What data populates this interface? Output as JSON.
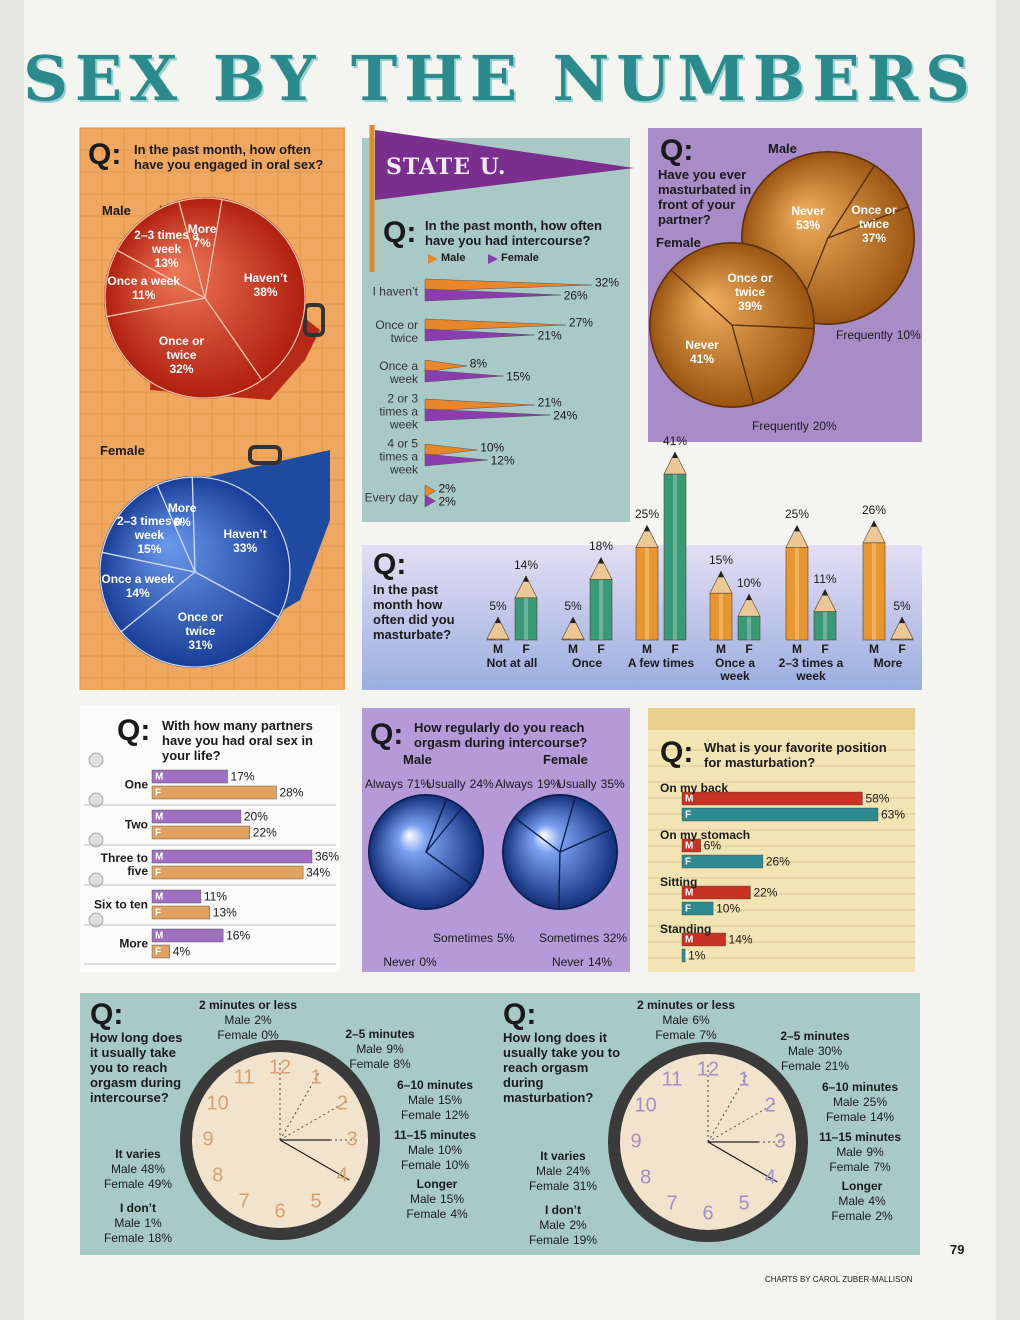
{
  "title": "SEX BY THE NUMBERS",
  "page_number": "79",
  "credit": "CHARTS BY CAROL ZUBER-MALLISON",
  "chart_data": [
    {
      "type": "pie",
      "q": "Q:",
      "title": "In the past month, how often have you engaged in oral sex?",
      "subtitle": "Male",
      "categories": [
        "Haven’t",
        "Once or twice",
        "Once a week",
        "2–3 times a week",
        "More"
      ],
      "values": [
        38,
        32,
        11,
        13,
        7
      ],
      "value_labels": [
        "38%",
        "32%",
        "11%",
        "13%",
        "7%"
      ],
      "color": "#c8321e"
    },
    {
      "type": "pie",
      "subtitle": "Female",
      "categories": [
        "Haven’t",
        "Once or twice",
        "Once a week",
        "2–3 times a week",
        "More"
      ],
      "values": [
        33,
        31,
        14,
        15,
        6
      ],
      "value_labels": [
        "33%",
        "31%",
        "14%",
        "15%",
        "6%"
      ],
      "color": "#2a5cb8"
    },
    {
      "type": "hbar",
      "banner": "STATE U.",
      "q": "Q:",
      "title": "In the past month, how often have you had intercourse?",
      "categories": [
        "I haven’t",
        "Once or twice",
        "Once a week",
        "2 or 3 times a week",
        "4 or 5 times a week",
        "Every day"
      ],
      "series": [
        {
          "name": "Male",
          "color": "#e8862a",
          "values": [
            32,
            27,
            8,
            21,
            10,
            2
          ],
          "value_labels": [
            "32%",
            "27%",
            "8%",
            "21%",
            "10%",
            "2%"
          ]
        },
        {
          "name": "Female",
          "color": "#8a3cb0",
          "values": [
            26,
            21,
            15,
            24,
            12,
            2
          ],
          "value_labels": [
            "26%",
            "21%",
            "15%",
            "24%",
            "12%",
            "2%"
          ]
        }
      ]
    },
    {
      "type": "pie",
      "q": "Q:",
      "title": "Have you ever masturbated in front of your partner?",
      "subtitle": "Male",
      "categories": [
        "Never",
        "Once or twice",
        "Frequently"
      ],
      "values": [
        53,
        37,
        10
      ],
      "value_labels": [
        "53%",
        "37%",
        "10%"
      ],
      "color": "#c8781e"
    },
    {
      "type": "pie",
      "subtitle": "Female",
      "categories": [
        "Never",
        "Once or twice",
        "Frequently"
      ],
      "values": [
        41,
        39,
        20
      ],
      "value_labels": [
        "41%",
        "39%",
        "20%"
      ],
      "color": "#c8781e"
    },
    {
      "type": "bar",
      "q": "Q:",
      "title": "In the past month how often did you masturbate?",
      "categories": [
        "Not at all",
        "Once",
        "A few times",
        "Once a week",
        "2–3 times a week",
        "More"
      ],
      "series": [
        {
          "name": "M",
          "color": "#e8962e",
          "values": [
            5,
            5,
            25,
            15,
            25,
            26
          ],
          "value_labels": [
            "5%",
            "5%",
            "25%",
            "15%",
            "25%",
            "26%"
          ]
        },
        {
          "name": "F",
          "color": "#3a9a78",
          "values": [
            14,
            18,
            41,
            10,
            11,
            5
          ],
          "value_labels": [
            "14%",
            "18%",
            "41%",
            "10%",
            "11%",
            "5%"
          ]
        }
      ]
    },
    {
      "type": "hbar",
      "q": "Q:",
      "title": "With how many partners have you had oral sex in your life?",
      "categories": [
        "One",
        "Two",
        "Three to five",
        "Six to ten",
        "More"
      ],
      "series": [
        {
          "name": "M",
          "color": "#a070c0",
          "values": [
            17,
            20,
            36,
            11,
            16
          ],
          "value_labels": [
            "17%",
            "20%",
            "36%",
            "11%",
            "16%"
          ]
        },
        {
          "name": "F",
          "color": "#e0a060",
          "values": [
            28,
            22,
            34,
            13,
            4
          ],
          "value_labels": [
            "28%",
            "22%",
            "34%",
            "13%",
            "4%"
          ]
        }
      ]
    },
    {
      "type": "pie",
      "q": "Q:",
      "title": "How regularly do you reach orgasm during intercourse?",
      "subtitle": "Male",
      "categories": [
        "Always",
        "Usually",
        "Sometimes",
        "Never"
      ],
      "values": [
        71,
        24,
        5,
        0
      ],
      "value_labels": [
        "71%",
        "24%",
        "5%",
        "0%"
      ],
      "color": "#2a5ab8"
    },
    {
      "type": "pie",
      "subtitle": "Female",
      "categories": [
        "Always",
        "Usually",
        "Sometimes",
        "Never"
      ],
      "values": [
        19,
        35,
        32,
        14
      ],
      "value_labels": [
        "19%",
        "35%",
        "32%",
        "14%"
      ],
      "color": "#2a5ab8"
    },
    {
      "type": "hbar",
      "q": "Q:",
      "title": "What is your favorite position for masturbation?",
      "categories": [
        "On my back",
        "On my stomach",
        "Sitting",
        "Standing"
      ],
      "series": [
        {
          "name": "M",
          "color": "#c83222",
          "values": [
            58,
            6,
            22,
            14
          ],
          "value_labels": [
            "58%",
            "6%",
            "22%",
            "14%"
          ]
        },
        {
          "name": "F",
          "color": "#2e8a90",
          "values": [
            63,
            26,
            10,
            1
          ],
          "value_labels": [
            "63%",
            "26%",
            "10%",
            "1%"
          ]
        }
      ]
    },
    {
      "type": "clock",
      "q": "Q:",
      "title": "How long does it usually take you to reach orgasm during intercourse?",
      "dial": [
        12,
        1,
        2,
        3,
        4,
        5,
        6,
        7,
        8,
        9,
        10,
        11
      ],
      "color": "#d8a070",
      "categories": [
        "2 minutes or less",
        "2–5 minutes",
        "6–10 minutes",
        "11–15 minutes",
        "Longer",
        "It varies",
        "I don’t"
      ],
      "series": [
        {
          "name": "Male",
          "values": [
            2,
            9,
            15,
            10,
            15,
            48,
            1
          ],
          "value_labels": [
            "2%",
            "9%",
            "15%",
            "10%",
            "15%",
            "48%",
            "1%"
          ]
        },
        {
          "name": "Female",
          "values": [
            0,
            8,
            12,
            10,
            4,
            49,
            18
          ],
          "value_labels": [
            "0%",
            "8%",
            "12%",
            "10%",
            "4%",
            "49%",
            "18%"
          ]
        }
      ]
    },
    {
      "type": "clock",
      "q": "Q:",
      "title": "How long does it usually take you to reach orgasm during masturbation?",
      "dial": [
        12,
        1,
        2,
        3,
        4,
        5,
        6,
        7,
        8,
        9,
        10,
        11
      ],
      "color": "#a090c8",
      "categories": [
        "2 minutes or less",
        "2–5 minutes",
        "6–10 minutes",
        "11–15 minutes",
        "Longer",
        "It varies",
        "I don’t"
      ],
      "series": [
        {
          "name": "Male",
          "values": [
            6,
            30,
            25,
            9,
            4,
            24,
            2
          ],
          "value_labels": [
            "6%",
            "30%",
            "25%",
            "9%",
            "4%",
            "24%",
            "2%"
          ]
        },
        {
          "name": "Female",
          "values": [
            7,
            21,
            14,
            7,
            2,
            31,
            19
          ],
          "value_labels": [
            "7%",
            "21%",
            "14%",
            "7%",
            "2%",
            "31%",
            "19%"
          ]
        }
      ]
    }
  ]
}
